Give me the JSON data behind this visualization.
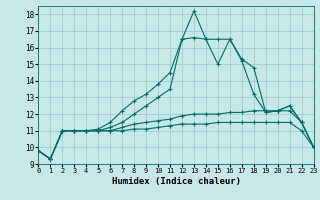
{
  "xlabel": "Humidex (Indice chaleur)",
  "background_color": "#c8e8e8",
  "grid_color": "#9fcfcf",
  "line_color": "#006b6b",
  "xlim": [
    0,
    23
  ],
  "ylim": [
    9,
    18.5
  ],
  "yticks": [
    9,
    10,
    11,
    12,
    13,
    14,
    15,
    16,
    17,
    18
  ],
  "xticks": [
    0,
    1,
    2,
    3,
    4,
    5,
    6,
    7,
    8,
    9,
    10,
    11,
    12,
    13,
    14,
    15,
    16,
    17,
    18,
    19,
    20,
    21,
    22,
    23
  ],
  "series": [
    [
      9.8,
      9.3,
      11.0,
      11.0,
      11.0,
      11.1,
      11.5,
      12.2,
      12.8,
      13.2,
      13.8,
      14.5,
      16.5,
      18.2,
      16.5,
      15.0,
      16.5,
      15.2,
      13.2,
      12.1,
      12.2,
      12.5,
      11.5,
      10.0
    ],
    [
      9.8,
      9.3,
      11.0,
      11.0,
      11.0,
      11.0,
      11.2,
      11.5,
      12.0,
      12.5,
      13.0,
      13.5,
      16.5,
      16.6,
      16.5,
      16.5,
      16.5,
      15.3,
      14.8,
      12.1,
      12.2,
      12.5,
      11.5,
      10.0
    ],
    [
      9.8,
      9.3,
      11.0,
      11.0,
      11.0,
      11.0,
      11.0,
      11.2,
      11.4,
      11.5,
      11.6,
      11.7,
      11.9,
      12.0,
      12.0,
      12.0,
      12.1,
      12.1,
      12.2,
      12.2,
      12.2,
      12.2,
      11.5,
      10.0
    ],
    [
      9.8,
      9.3,
      11.0,
      11.0,
      11.0,
      11.0,
      11.0,
      11.0,
      11.1,
      11.1,
      11.2,
      11.3,
      11.4,
      11.4,
      11.4,
      11.5,
      11.5,
      11.5,
      11.5,
      11.5,
      11.5,
      11.5,
      11.0,
      10.0
    ]
  ]
}
